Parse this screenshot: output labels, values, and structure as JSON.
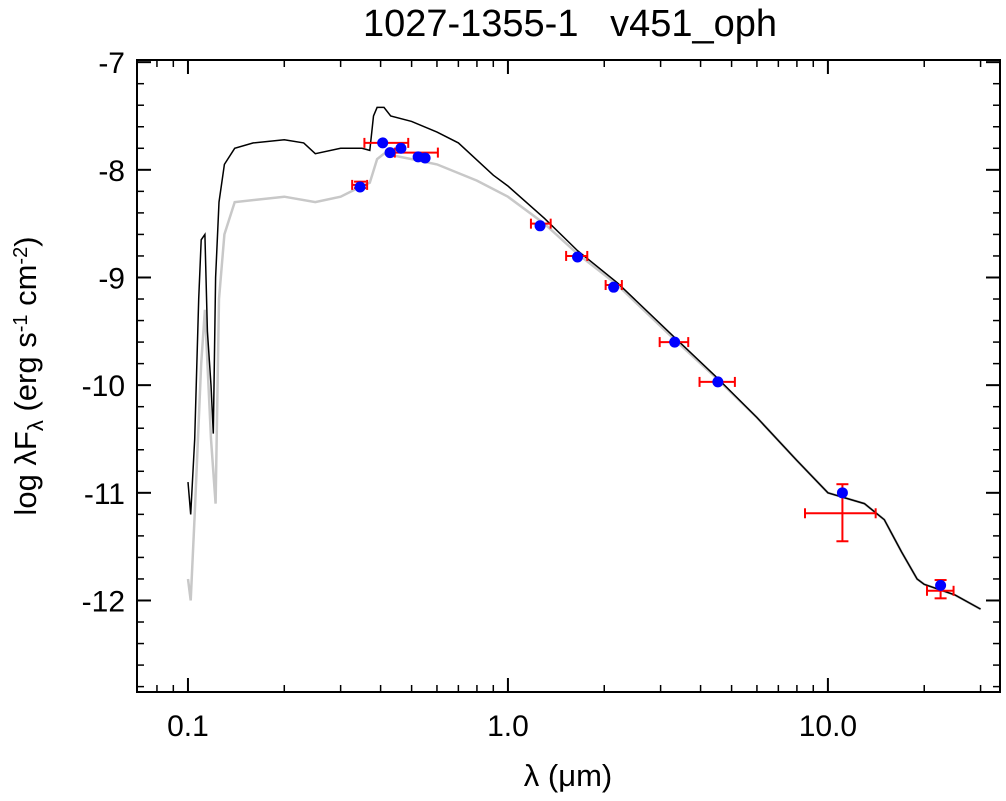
{
  "chart_data": {
    "type": "sed",
    "title": "1027-1355-1   v451_oph",
    "xlabel": "λ (μm)",
    "ylabel_parts": [
      "log λF",
      "λ",
      " (erg s",
      "-1",
      " cm",
      "-2",
      ")"
    ],
    "log_x": true,
    "xlim": [
      0.0693,
      34.5
    ],
    "ylim": [
      -12.85,
      -6.98
    ],
    "xticks": [
      0.1,
      {
        "value": 1,
        "label": "1.0"
      },
      {
        "value": 10,
        "label": "10.0"
      }
    ],
    "x_minor_ticks": [
      0.08,
      0.09,
      0.2,
      0.3,
      0.4,
      0.5,
      0.6,
      0.7,
      0.8,
      0.9,
      2,
      3,
      4,
      5,
      6,
      7,
      8,
      9,
      20,
      30
    ],
    "yticks": [
      -7,
      -8,
      -9,
      -10,
      -11,
      -12
    ],
    "y_minor_ticks": [
      -7.2,
      -7.4,
      -7.6,
      -7.8,
      -8.2,
      -8.4,
      -8.6,
      -8.8,
      -9.2,
      -9.4,
      -9.6,
      -9.8,
      -10.2,
      -10.4,
      -10.6,
      -10.8,
      -11.2,
      -11.4,
      -11.6,
      -11.8,
      -12.2,
      -12.4,
      -12.6,
      -12.8
    ],
    "models": [
      {
        "color": "#c8c8c8",
        "x": [
          0.1,
          0.102,
          0.105,
          0.11,
          0.113,
          0.118,
          0.122,
          0.125,
          0.13,
          0.14,
          0.2,
          0.25,
          0.3,
          0.35,
          0.37,
          0.39,
          0.41,
          0.5,
          0.6,
          0.8,
          1.0,
          1.3,
          1.65,
          2.2,
          3.3,
          4.5,
          6,
          8,
          10,
          13,
          15,
          17,
          19,
          20,
          25,
          30
        ],
        "y": [
          -11.8,
          -12.0,
          -11.2,
          -9.8,
          -9.3,
          -10.5,
          -11.1,
          -9.2,
          -8.6,
          -8.3,
          -8.25,
          -8.3,
          -8.25,
          -8.15,
          -8.12,
          -7.9,
          -7.85,
          -7.9,
          -7.95,
          -8.1,
          -8.25,
          -8.5,
          -8.78,
          -9.07,
          -9.57,
          -9.94,
          -10.3,
          -10.7,
          -11.0,
          -11.1,
          -11.25,
          -11.55,
          -11.8,
          -11.85,
          -11.95,
          -12.08
        ]
      },
      {
        "color": "#000000",
        "x": [
          0.1,
          0.102,
          0.105,
          0.108,
          0.11,
          0.113,
          0.115,
          0.118,
          0.12,
          0.122,
          0.125,
          0.13,
          0.14,
          0.16,
          0.2,
          0.23,
          0.25,
          0.3,
          0.35,
          0.37,
          0.38,
          0.39,
          0.41,
          0.43,
          0.5,
          0.6,
          0.7,
          0.9,
          1.0,
          1.3,
          1.65,
          2.2,
          3.3,
          4.5,
          6,
          8,
          10,
          13,
          15,
          17,
          19,
          20,
          25,
          30
        ],
        "y": [
          -10.9,
          -11.2,
          -10.5,
          -9.2,
          -8.65,
          -8.6,
          -9.5,
          -10.0,
          -10.45,
          -9.0,
          -8.3,
          -7.95,
          -7.8,
          -7.75,
          -7.72,
          -7.75,
          -7.85,
          -7.8,
          -7.8,
          -7.82,
          -7.5,
          -7.42,
          -7.42,
          -7.5,
          -7.55,
          -7.65,
          -7.75,
          -8.05,
          -8.15,
          -8.45,
          -8.75,
          -9.05,
          -9.55,
          -9.93,
          -10.3,
          -10.7,
          -11.0,
          -11.1,
          -11.25,
          -11.55,
          -11.8,
          -11.85,
          -11.95,
          -12.08
        ]
      }
    ],
    "errorbars": {
      "color": "#ff0000",
      "items": [
        {
          "x": 0.345,
          "y": -8.14,
          "xlo": 0.326,
          "xhi": 0.363,
          "ylo": -8.17,
          "yhi": -8.11
        },
        {
          "x": 0.41,
          "y": -7.75,
          "xlo": 0.356,
          "xhi": 0.488
        },
        {
          "x": 0.52,
          "y": -7.84,
          "xlo": 0.443,
          "xhi": 0.604
        },
        {
          "x": 1.26,
          "y": -8.5,
          "xlo": 1.18,
          "xhi": 1.36
        },
        {
          "x": 1.65,
          "y": -8.8,
          "xlo": 1.52,
          "xhi": 1.77
        },
        {
          "x": 2.14,
          "y": -9.07,
          "xlo": 2.02,
          "xhi": 2.27
        },
        {
          "x": 3.32,
          "y": -9.6,
          "xlo": 2.98,
          "xhi": 3.66
        },
        {
          "x": 4.53,
          "y": -9.97,
          "xlo": 3.97,
          "xhi": 5.12
        },
        {
          "x": 11.1,
          "y": -11.19,
          "xlo": 8.48,
          "xhi": 14.1,
          "ylo": -11.45,
          "yhi": -10.92
        },
        {
          "x": 22.5,
          "y": -11.91,
          "xlo": 20.4,
          "xhi": 24.7,
          "ylo": -11.98,
          "yhi": -11.81
        }
      ]
    },
    "points": {
      "color": "#0000ff",
      "x": [
        0.345,
        0.406,
        0.428,
        0.463,
        0.524,
        0.551,
        1.26,
        1.65,
        2.14,
        3.32,
        4.53,
        11.1,
        22.5
      ],
      "y": [
        -8.16,
        -7.75,
        -7.84,
        -7.8,
        -7.88,
        -7.89,
        -8.52,
        -8.81,
        -9.09,
        -9.6,
        -9.97,
        -11.0,
        -11.86
      ]
    }
  }
}
